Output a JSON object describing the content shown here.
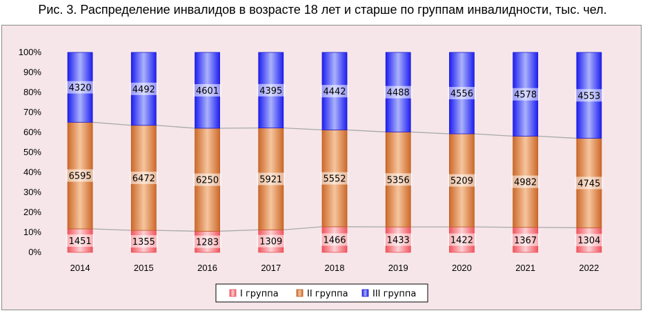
{
  "chart_data": {
    "type": "bar",
    "stacked": "percent",
    "title": "Рис. 3. Распределение инвалидов в возрасте 18 лет и старше по группам инвалидности, тыс. чел.",
    "categories": [
      "2014",
      "2015",
      "2016",
      "2017",
      "2018",
      "2019",
      "2020",
      "2021",
      "2022"
    ],
    "series": [
      {
        "name": "I группа",
        "values": [
          1451,
          1355,
          1283,
          1309,
          1466,
          1433,
          1422,
          1367,
          1304
        ]
      },
      {
        "name": "II группа",
        "values": [
          6595,
          6472,
          6250,
          5921,
          5552,
          5356,
          5209,
          4982,
          4745
        ]
      },
      {
        "name": "III группа",
        "values": [
          4320,
          4492,
          4601,
          4395,
          4442,
          4488,
          4556,
          4578,
          4553
        ]
      }
    ],
    "yticks": [
      "0%",
      "10%",
      "20%",
      "30%",
      "40%",
      "50%",
      "60%",
      "70%",
      "80%",
      "90%",
      "100%"
    ],
    "ylim": [
      0,
      100
    ],
    "series_lines": true,
    "grid": false,
    "legend": "bottom",
    "colors": {
      "s1": "#f5676f",
      "s2": "#d97b3b",
      "s3": "#2a2af2",
      "background": "#f6e6e9",
      "connector": "#a8a8a8"
    }
  }
}
